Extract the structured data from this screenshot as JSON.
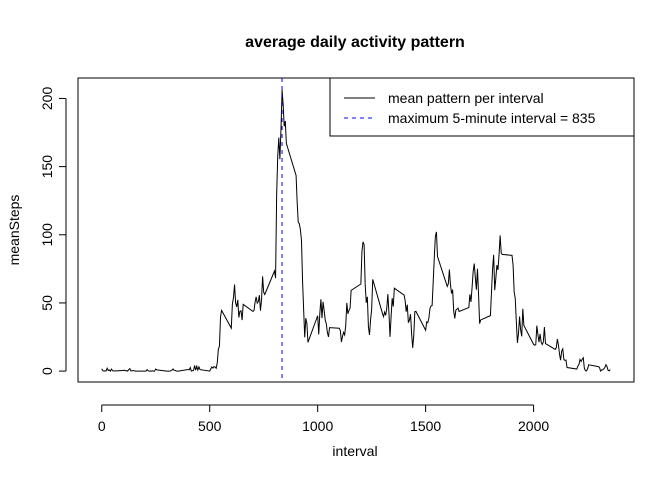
{
  "chart_data": {
    "type": "line",
    "title": "average daily activity pattern",
    "xlabel": "interval",
    "ylabel": "meanSteps",
    "xlim": [
      -110,
      2465
    ],
    "ylim": [
      -8,
      215
    ],
    "x_ticks": [
      0,
      500,
      1000,
      1500,
      2000
    ],
    "y_ticks": [
      0,
      50,
      100,
      150,
      200
    ],
    "grid": false,
    "legend_position": "top-right",
    "series": [
      {
        "name": "mean pattern per interval",
        "color": "#000000",
        "line_style": "solid",
        "points": [
          [
            0,
            1.7
          ],
          [
            5,
            0.3
          ],
          [
            10,
            0.1
          ],
          [
            15,
            0.2
          ],
          [
            20,
            0.1
          ],
          [
            25,
            2.1
          ],
          [
            30,
            0.5
          ],
          [
            35,
            0.9
          ],
          [
            40,
            0
          ],
          [
            45,
            1.5
          ],
          [
            50,
            0.3
          ],
          [
            55,
            0.1
          ],
          [
            100,
            0.4
          ],
          [
            105,
            0.7
          ],
          [
            110,
            0.2
          ],
          [
            115,
            0.3
          ],
          [
            120,
            0
          ],
          [
            125,
            1.1
          ],
          [
            130,
            1.8
          ],
          [
            135,
            0.2
          ],
          [
            140,
            0.2
          ],
          [
            145,
            0.4
          ],
          [
            150,
            0.3
          ],
          [
            155,
            0
          ],
          [
            200,
            0
          ],
          [
            205,
            0
          ],
          [
            210,
            1.1
          ],
          [
            215,
            0.3
          ],
          [
            220,
            0
          ],
          [
            225,
            0.1
          ],
          [
            230,
            0
          ],
          [
            235,
            0.2
          ],
          [
            240,
            0
          ],
          [
            245,
            0
          ],
          [
            250,
            1.5
          ],
          [
            255,
            0.9
          ],
          [
            300,
            0
          ],
          [
            305,
            0
          ],
          [
            310,
            0
          ],
          [
            315,
            0
          ],
          [
            320,
            0.2
          ],
          [
            325,
            0.6
          ],
          [
            330,
            1.6
          ],
          [
            335,
            0.6
          ],
          [
            340,
            0.5
          ],
          [
            345,
            0.1
          ],
          [
            350,
            0
          ],
          [
            355,
            0
          ],
          [
            400,
            1.2
          ],
          [
            405,
            0.9
          ],
          [
            410,
            2.6
          ],
          [
            415,
            0
          ],
          [
            420,
            0.3
          ],
          [
            425,
            0.4
          ],
          [
            430,
            4.1
          ],
          [
            435,
            0.7
          ],
          [
            440,
            3.5
          ],
          [
            445,
            0.8
          ],
          [
            450,
            3.1
          ],
          [
            455,
            1.1
          ],
          [
            500,
            0
          ],
          [
            505,
            1.6
          ],
          [
            510,
            3.0
          ],
          [
            515,
            2.2
          ],
          [
            520,
            3.3
          ],
          [
            525,
            3.0
          ],
          [
            530,
            2.1
          ],
          [
            535,
            6.1
          ],
          [
            540,
            16.0
          ],
          [
            545,
            18.3
          ],
          [
            550,
            39.5
          ],
          [
            555,
            44.5
          ],
          [
            600,
            31.5
          ],
          [
            605,
            49.3
          ],
          [
            610,
            53.8
          ],
          [
            615,
            63.5
          ],
          [
            620,
            50.0
          ],
          [
            625,
            47.1
          ],
          [
            630,
            52.2
          ],
          [
            635,
            39.3
          ],
          [
            640,
            44.0
          ],
          [
            645,
            44.2
          ],
          [
            650,
            37.4
          ],
          [
            655,
            49.0
          ],
          [
            700,
            43.8
          ],
          [
            705,
            44.4
          ],
          [
            710,
            50.5
          ],
          [
            715,
            54.5
          ],
          [
            720,
            49.9
          ],
          [
            725,
            51.0
          ],
          [
            730,
            55.7
          ],
          [
            735,
            44.3
          ],
          [
            740,
            52.3
          ],
          [
            745,
            69.5
          ],
          [
            750,
            57.8
          ],
          [
            755,
            56.2
          ],
          [
            800,
            73.4
          ],
          [
            805,
            68.2
          ],
          [
            810,
            129.4
          ],
          [
            815,
            157.5
          ],
          [
            820,
            171.2
          ],
          [
            825,
            155.4
          ],
          [
            830,
            177.3
          ],
          [
            835,
            206.2
          ],
          [
            840,
            195.9
          ],
          [
            845,
            179.6
          ],
          [
            850,
            183.4
          ],
          [
            855,
            167.0
          ],
          [
            900,
            143.5
          ],
          [
            905,
            124.0
          ],
          [
            910,
            109.1
          ],
          [
            915,
            108.1
          ],
          [
            920,
            103.7
          ],
          [
            925,
            95.9
          ],
          [
            930,
            66.2
          ],
          [
            935,
            45.2
          ],
          [
            940,
            24.8
          ],
          [
            945,
            38.8
          ],
          [
            950,
            35.0
          ],
          [
            955,
            21.1
          ],
          [
            1000,
            40.6
          ],
          [
            1005,
            27.0
          ],
          [
            1010,
            42.4
          ],
          [
            1015,
            52.7
          ],
          [
            1020,
            38.9
          ],
          [
            1025,
            50.8
          ],
          [
            1030,
            44.3
          ],
          [
            1035,
            37.4
          ],
          [
            1040,
            34.7
          ],
          [
            1045,
            28.3
          ],
          [
            1050,
            25.1
          ],
          [
            1055,
            31.9
          ],
          [
            1100,
            31.4
          ],
          [
            1105,
            29.7
          ],
          [
            1110,
            21.3
          ],
          [
            1115,
            25.5
          ],
          [
            1120,
            28.4
          ],
          [
            1125,
            26.5
          ],
          [
            1130,
            33.4
          ],
          [
            1135,
            50.0
          ],
          [
            1140,
            42.0
          ],
          [
            1145,
            44.6
          ],
          [
            1150,
            46.0
          ],
          [
            1155,
            59.2
          ],
          [
            1200,
            63.9
          ],
          [
            1205,
            87.7
          ],
          [
            1210,
            94.8
          ],
          [
            1215,
            92.8
          ],
          [
            1220,
            63.4
          ],
          [
            1225,
            50.2
          ],
          [
            1230,
            54.5
          ],
          [
            1235,
            32.4
          ],
          [
            1240,
            26.5
          ],
          [
            1245,
            37.7
          ],
          [
            1250,
            45.1
          ],
          [
            1255,
            67.3
          ],
          [
            1300,
            42.3
          ],
          [
            1305,
            39.9
          ],
          [
            1310,
            43.3
          ],
          [
            1315,
            40.9
          ],
          [
            1320,
            46.2
          ],
          [
            1325,
            56.4
          ],
          [
            1330,
            42.8
          ],
          [
            1335,
            25.1
          ],
          [
            1340,
            39.9
          ],
          [
            1345,
            53.5
          ],
          [
            1350,
            47.3
          ],
          [
            1355,
            60.8
          ],
          [
            1400,
            55.8
          ],
          [
            1405,
            51.9
          ],
          [
            1410,
            43.6
          ],
          [
            1415,
            48.7
          ],
          [
            1420,
            35.5
          ],
          [
            1425,
            37.5
          ],
          [
            1430,
            41.8
          ],
          [
            1435,
            27.5
          ],
          [
            1440,
            17.1
          ],
          [
            1445,
            26.1
          ],
          [
            1450,
            43.6
          ],
          [
            1455,
            43.8
          ],
          [
            1500,
            30.0
          ],
          [
            1505,
            36.1
          ],
          [
            1510,
            35.5
          ],
          [
            1515,
            38.8
          ],
          [
            1520,
            45.9
          ],
          [
            1525,
            47.8
          ],
          [
            1530,
            48.1
          ],
          [
            1535,
            65.3
          ],
          [
            1540,
            82.9
          ],
          [
            1545,
            98.7
          ],
          [
            1550,
            102.1
          ],
          [
            1555,
            84.0
          ],
          [
            1600,
            62.1
          ],
          [
            1605,
            64.1
          ],
          [
            1610,
            74.5
          ],
          [
            1615,
            63.2
          ],
          [
            1620,
            56.9
          ],
          [
            1625,
            59.8
          ],
          [
            1630,
            43.9
          ],
          [
            1635,
            38.6
          ],
          [
            1640,
            44.7
          ],
          [
            1645,
            45.5
          ],
          [
            1650,
            46.2
          ],
          [
            1655,
            43.7
          ],
          [
            1700,
            46.6
          ],
          [
            1705,
            56.3
          ],
          [
            1710,
            50.7
          ],
          [
            1715,
            61.2
          ],
          [
            1720,
            72.7
          ],
          [
            1725,
            78.9
          ],
          [
            1730,
            68.9
          ],
          [
            1735,
            59.7
          ],
          [
            1740,
            75.1
          ],
          [
            1745,
            56.5
          ],
          [
            1750,
            34.8
          ],
          [
            1755,
            37.5
          ],
          [
            1800,
            40.7
          ],
          [
            1805,
            58.0
          ],
          [
            1810,
            74.7
          ],
          [
            1815,
            85.3
          ],
          [
            1820,
            59.3
          ],
          [
            1825,
            67.8
          ],
          [
            1830,
            77.7
          ],
          [
            1835,
            74.2
          ],
          [
            1840,
            85.3
          ],
          [
            1845,
            99.5
          ],
          [
            1850,
            86.6
          ],
          [
            1855,
            85.6
          ],
          [
            1900,
            84.9
          ],
          [
            1905,
            77.8
          ],
          [
            1910,
            58.0
          ],
          [
            1915,
            53.4
          ],
          [
            1920,
            36.3
          ],
          [
            1925,
            20.7
          ],
          [
            1930,
            27.4
          ],
          [
            1935,
            40.0
          ],
          [
            1940,
            30.2
          ],
          [
            1945,
            25.5
          ],
          [
            1950,
            45.7
          ],
          [
            1955,
            33.5
          ],
          [
            2000,
            19.6
          ],
          [
            2005,
            19.0
          ],
          [
            2010,
            19.3
          ],
          [
            2015,
            33.3
          ],
          [
            2020,
            26.8
          ],
          [
            2025,
            21.2
          ],
          [
            2030,
            27.3
          ],
          [
            2035,
            21.3
          ],
          [
            2040,
            19.5
          ],
          [
            2045,
            21.3
          ],
          [
            2050,
            32.3
          ],
          [
            2055,
            20.2
          ],
          [
            2100,
            15.9
          ],
          [
            2105,
            17.2
          ],
          [
            2110,
            23.5
          ],
          [
            2115,
            19.2
          ],
          [
            2120,
            12.5
          ],
          [
            2125,
            8.0
          ],
          [
            2130,
            14.7
          ],
          [
            2135,
            16.3
          ],
          [
            2140,
            8.7
          ],
          [
            2145,
            7.8
          ],
          [
            2150,
            8.1
          ],
          [
            2155,
            2.6
          ],
          [
            2200,
            1.5
          ],
          [
            2205,
            3.7
          ],
          [
            2210,
            4.8
          ],
          [
            2215,
            8.5
          ],
          [
            2220,
            7.1
          ],
          [
            2225,
            8.7
          ],
          [
            2230,
            9.8
          ],
          [
            2235,
            2.2
          ],
          [
            2240,
            0.3
          ],
          [
            2245,
            0.1
          ],
          [
            2250,
            1.6
          ],
          [
            2255,
            4.6
          ],
          [
            2300,
            3.3
          ],
          [
            2305,
            2.8
          ],
          [
            2310,
            0
          ],
          [
            2315,
            0.8
          ],
          [
            2320,
            1.0
          ],
          [
            2325,
            1.6
          ],
          [
            2330,
            2.6
          ],
          [
            2335,
            4.7
          ],
          [
            2340,
            3.3
          ],
          [
            2345,
            0.6
          ],
          [
            2350,
            0.2
          ],
          [
            2355,
            1.1
          ]
        ]
      },
      {
        "name": "maximum 5-minute interval = 835",
        "color": "#0000ff",
        "line_style": "dashed",
        "vertical_at_x": 835
      }
    ]
  }
}
